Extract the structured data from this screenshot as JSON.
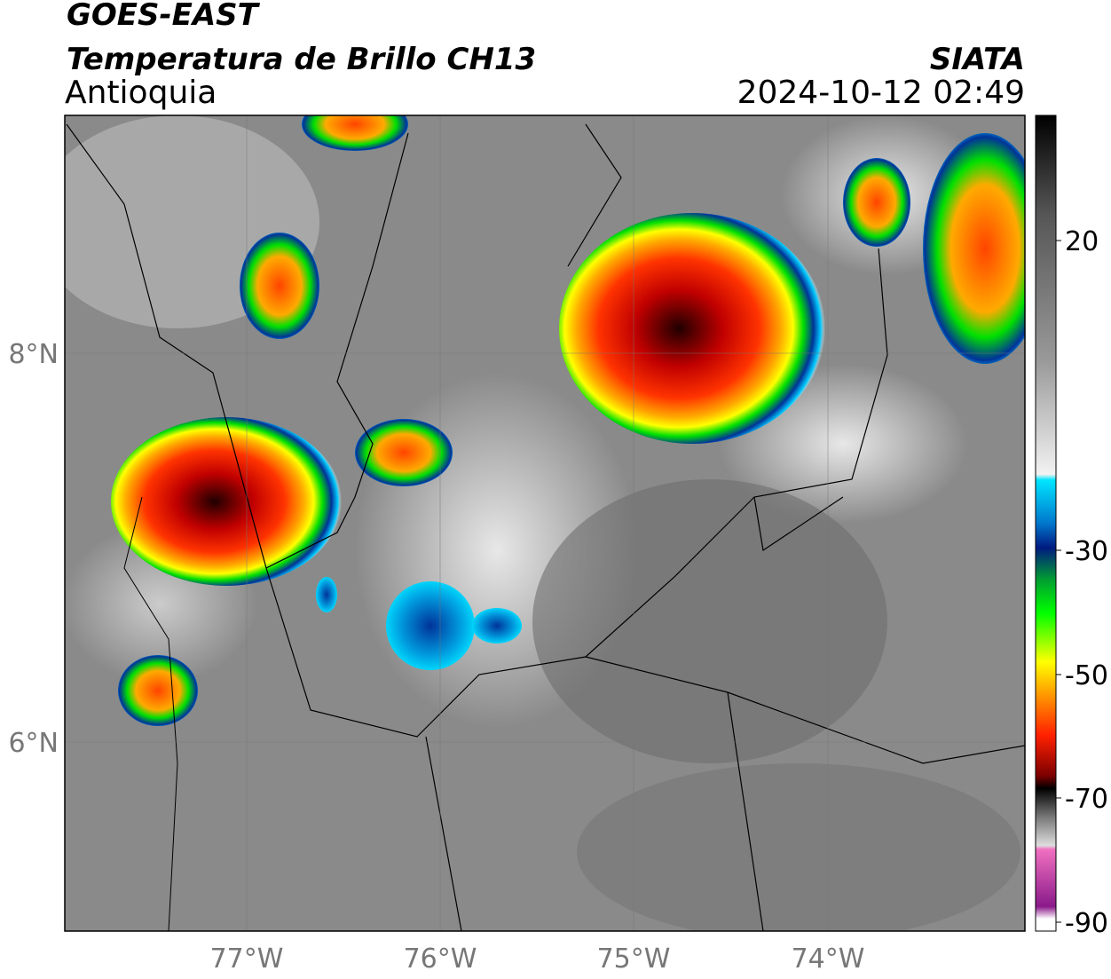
{
  "header": {
    "satellite": "GOES-EAST",
    "product": "Temperatura de Brillo CH13",
    "region": "Antioquia",
    "source": "SIATA",
    "datetime": "2024-10-12 02:49"
  },
  "map": {
    "lat_labels": [
      "8°N",
      "6°N"
    ],
    "lon_labels": [
      "77°W",
      "76°W",
      "75°W",
      "74°W"
    ]
  },
  "colorbar": {
    "ticks": [
      "20",
      "-30",
      "-50",
      "-70",
      "-90"
    ]
  }
}
